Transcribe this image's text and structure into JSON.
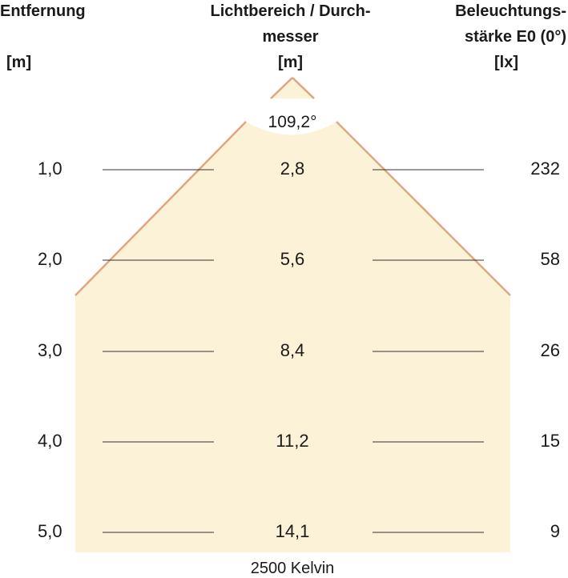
{
  "headers": {
    "distance": [
      "Entfernung",
      "[m]"
    ],
    "diameter": [
      "Lichtbereich / Durch-",
      "messer",
      "[m]"
    ],
    "illuminance": [
      "Beleuchtungs-",
      "stärke E0 (0°)",
      "[lx]"
    ]
  },
  "beam_angle": "109,2°",
  "footer": "2500 Kelvin",
  "rows": [
    {
      "distance": "1,0",
      "diameter": "2,8",
      "lux": "232"
    },
    {
      "distance": "2,0",
      "diameter": "5,6",
      "lux": "58"
    },
    {
      "distance": "3,0",
      "diameter": "8,4",
      "lux": "26"
    },
    {
      "distance": "4,0",
      "diameter": "11,2",
      "lux": "15"
    },
    {
      "distance": "5,0",
      "diameter": "14,1",
      "lux": "9"
    }
  ],
  "colors": {
    "light_fill": "#fcf2d8",
    "edge": "#e0a57f",
    "line": "#333333"
  }
}
